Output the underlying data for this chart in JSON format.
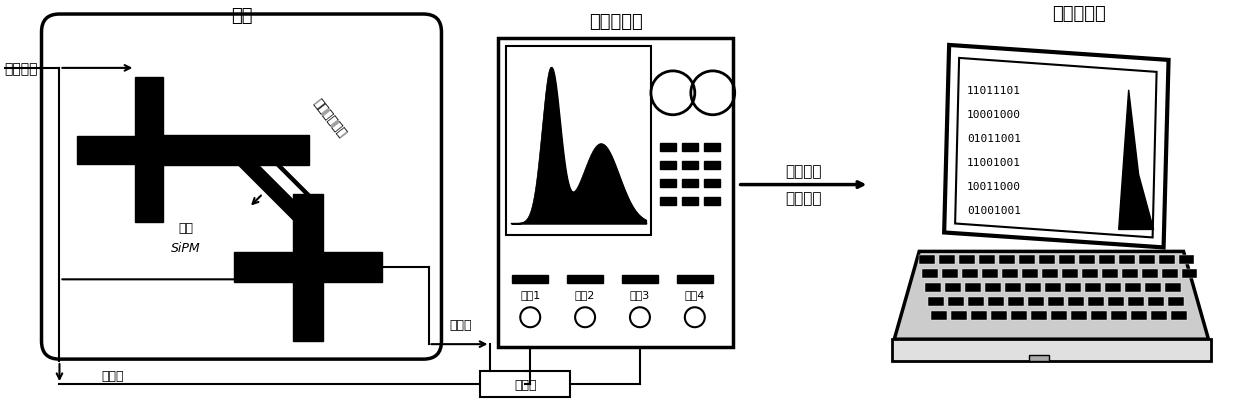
{
  "bg_color": "#ffffff",
  "title_ankuang": "暗盒",
  "title_oscilloscope": "数字示波器",
  "title_computer": "计算机终端",
  "label_low_voltage": "低压电源",
  "label_source": "放射源和样品",
  "label_base": "墨体",
  "label_sipm": "SiPM",
  "label_fast_signal1": "快信号",
  "label_fast_signal2": "快信号",
  "label_delay_line": "延迟线",
  "label_waveform": "波形数据",
  "label_offline": "离线分析",
  "channels": [
    "通道1",
    "通道2",
    "通道3",
    "通道4"
  ],
  "binary_lines": [
    "11011101",
    "10001000",
    "01011001",
    "11001001",
    "10011000",
    "01001001"
  ]
}
